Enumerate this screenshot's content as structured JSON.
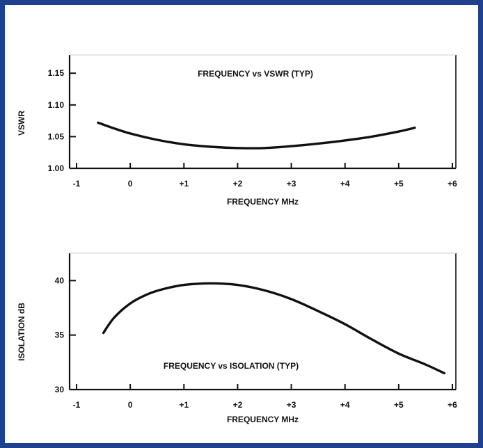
{
  "colors": {
    "frame": "#1f3f8f",
    "ink": "#111111",
    "background": "#ffffff"
  },
  "chart_data": [
    {
      "type": "line",
      "title": "FREQUENCY vs VSWR (TYP)",
      "xlabel": "FREQUENCY MHz",
      "ylabel": "VSWR",
      "xlim": [
        -1,
        6
      ],
      "ylim": [
        1.0,
        1.17
      ],
      "x_ticks": [
        -1,
        0,
        1,
        2,
        3,
        4,
        5,
        6
      ],
      "x_tick_labels": [
        "-1",
        "0",
        "+1",
        "+2",
        "+3",
        "+4",
        "+5",
        "+6"
      ],
      "y_ticks": [
        1.0,
        1.05,
        1.1,
        1.15
      ],
      "y_tick_labels": [
        "1.00",
        "1.05",
        "1.10",
        "1.15"
      ],
      "grid": false,
      "series": [
        {
          "x": [
            -0.6,
            -0.3,
            0,
            0.5,
            1,
            1.5,
            2,
            2.5,
            3,
            3.5,
            4,
            4.5,
            5,
            5.3
          ],
          "y": [
            1.072,
            1.063,
            1.055,
            1.045,
            1.038,
            1.034,
            1.032,
            1.032,
            1.035,
            1.039,
            1.044,
            1.05,
            1.058,
            1.064
          ]
        }
      ]
    },
    {
      "type": "line",
      "title": "FREQUENCY vs ISOLATION (TYP)",
      "xlabel": "FREQUENCY MHz",
      "ylabel": "ISOLATION dB",
      "xlim": [
        -1,
        6
      ],
      "ylim": [
        30,
        42
      ],
      "x_ticks": [
        -1,
        0,
        1,
        2,
        3,
        4,
        5,
        6
      ],
      "x_tick_labels": [
        "-1",
        "0",
        "+1",
        "+2",
        "+3",
        "+4",
        "+5",
        "+6"
      ],
      "y_ticks": [
        30,
        35,
        40
      ],
      "y_tick_labels": [
        "30",
        "35",
        "40"
      ],
      "grid": false,
      "series": [
        {
          "x": [
            -0.5,
            -0.3,
            0,
            0.3,
            0.6,
            1,
            1.5,
            2,
            2.5,
            3,
            3.5,
            4,
            4.5,
            5,
            5.5,
            5.85
          ],
          "y": [
            35.2,
            36.6,
            37.9,
            38.7,
            39.2,
            39.6,
            39.75,
            39.6,
            39.1,
            38.3,
            37.2,
            36.0,
            34.6,
            33.3,
            32.3,
            31.5
          ]
        }
      ]
    }
  ]
}
